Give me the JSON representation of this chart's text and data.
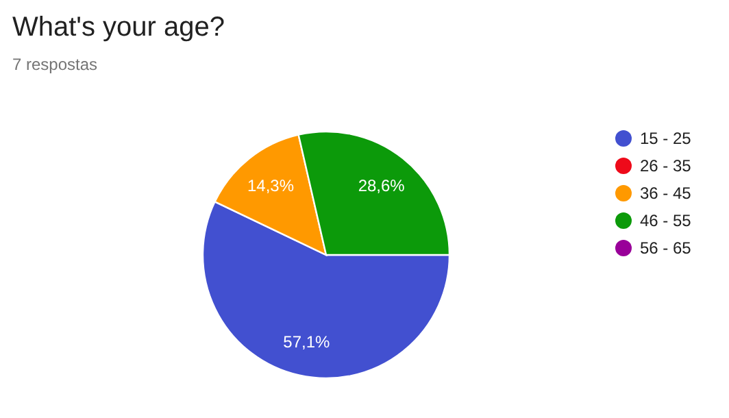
{
  "chart_data": {
    "type": "pie",
    "title": "What's your age?",
    "subtitle": "7 respostas",
    "categories": [
      "15 - 25",
      "26 - 35",
      "36 - 45",
      "46 - 55",
      "56 - 65"
    ],
    "values": [
      57.1,
      0,
      14.3,
      28.6,
      0
    ],
    "value_labels": [
      "57,1%",
      null,
      "14,3%",
      "28,6%",
      null
    ],
    "colors": [
      "#4250d0",
      "#ee0a1a",
      "#ff9900",
      "#0c9a0a",
      "#990099"
    ],
    "legend": "right"
  }
}
